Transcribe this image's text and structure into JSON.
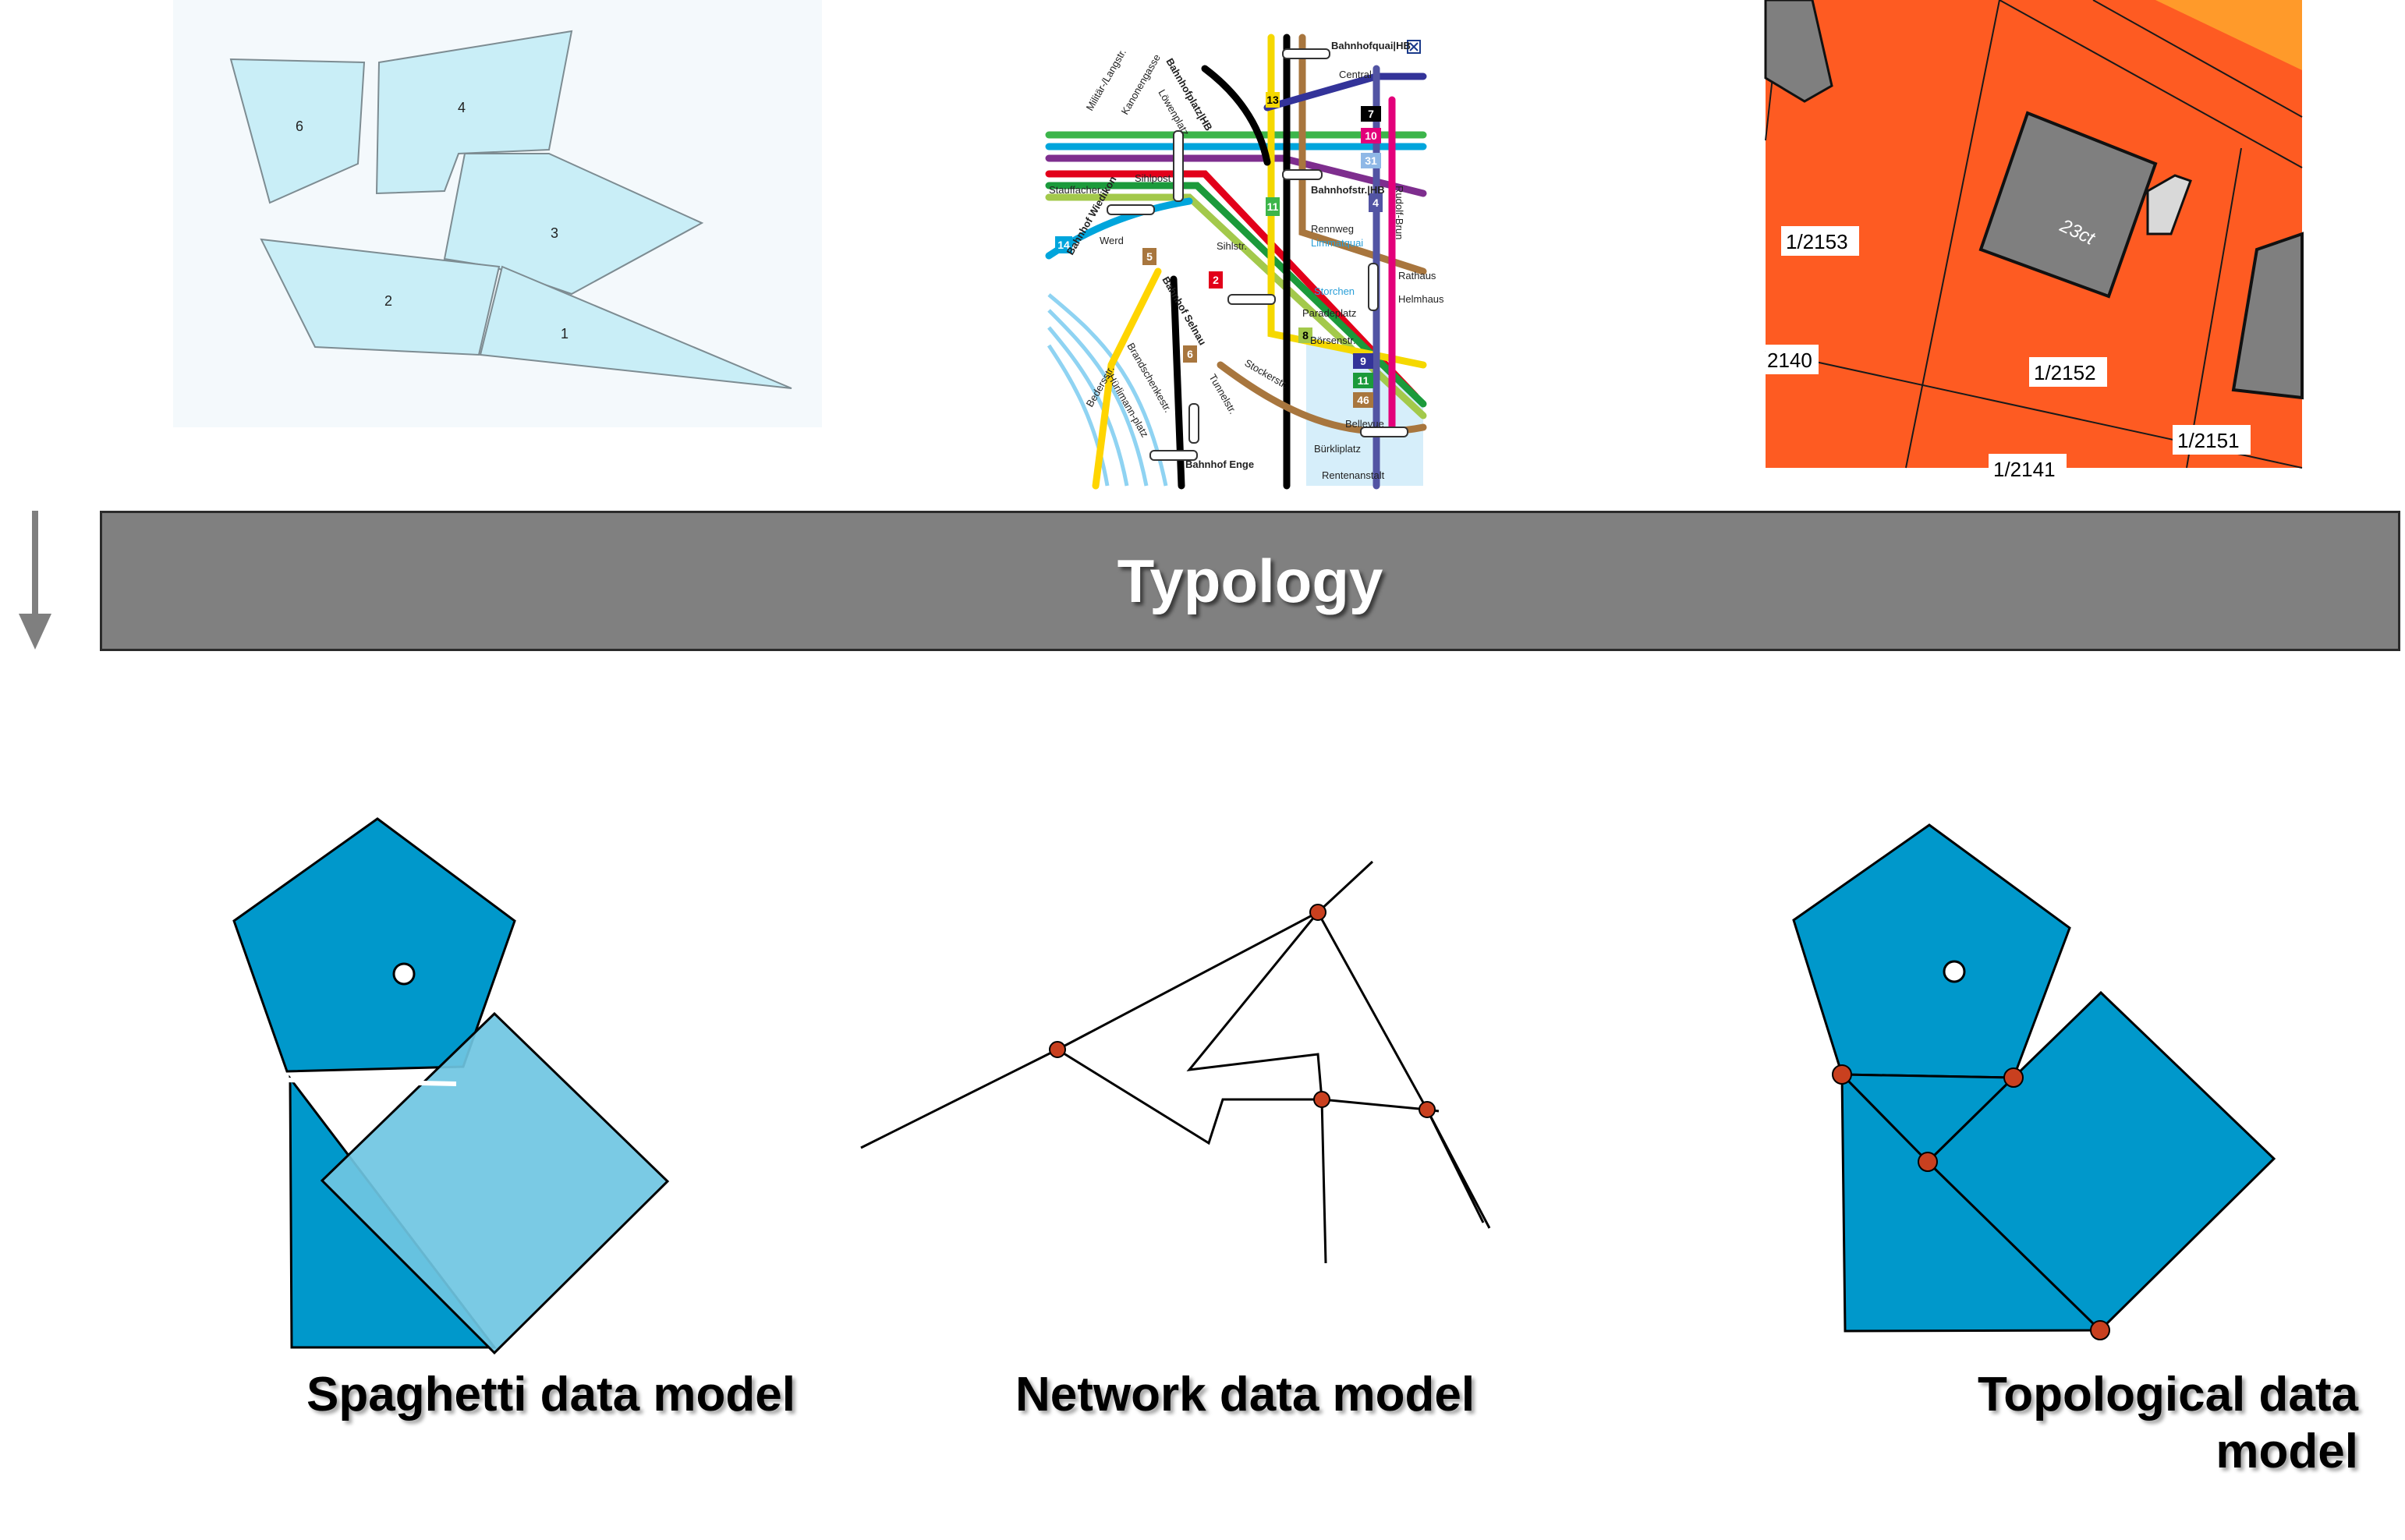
{
  "band": {
    "label": "Typology"
  },
  "captions": {
    "spaghetti": "Spaghetti data model",
    "network": "Network data model",
    "topological_line1": "Topological data",
    "topological_line2": "model"
  },
  "polygon_labels": [
    "6",
    "4",
    "3",
    "2",
    "1"
  ],
  "transit_map": {
    "stops": [
      "Bahnhofquai|HB",
      "Central",
      "Bahnhofplatz|HB",
      "Löwenplatz",
      "Kanonengasse",
      "Militär-/Langstr.",
      "Sihlpost",
      "Stauffacher",
      "Bahnhofstr.|HB",
      "Rennweg",
      "Limmatquai",
      "Werd",
      "Sihlstr.",
      "Storchen",
      "Paradeplatz",
      "Börsenstr.",
      "Bahnhof Selnau",
      "Bahnhof Wiedikon",
      "Stockerstr.",
      "Tunnelstr.",
      "Brandschenkestr.",
      "Hürlimann-platz",
      "Bedersstr.",
      "Bellevue",
      "Bürkliplatz",
      "Rentenanstalt",
      "Bahnhof Enge",
      "Rudolf-Brun",
      "Rathaus",
      "Helmhaus"
    ],
    "line_numbers": [
      "13",
      "7",
      "10",
      "31",
      "4",
      "11",
      "14",
      "2",
      "8",
      "9",
      "11",
      "46",
      "5",
      "6"
    ]
  },
  "cadastral": {
    "parcels": [
      "1/2153",
      "1/2152",
      "1/2151",
      "2140",
      "1/2141"
    ],
    "building": "23ct"
  },
  "colors": {
    "band": "#808080",
    "poly_light": "#c9eef7",
    "poly_blue": "#0098cb",
    "poly_blue_light": "#6fc6e2",
    "node": "#c9401f",
    "parcel": "#fe5b22",
    "building": "#7f7f7f"
  },
  "icons": [
    "down-arrow-icon"
  ]
}
